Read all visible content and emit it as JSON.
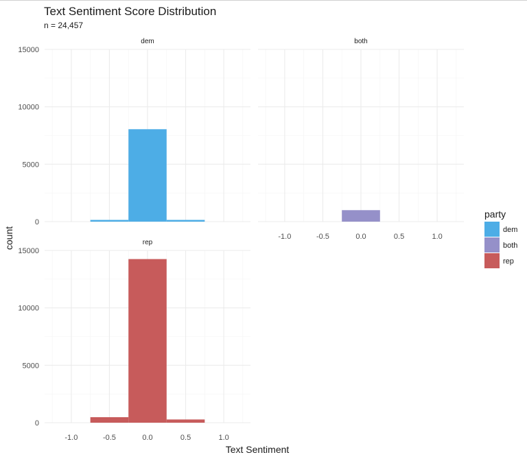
{
  "chart_data": {
    "type": "bar",
    "title": "Text Sentiment Score Distribution",
    "subtitle": "n = 24,457",
    "xlabel": "Text Sentiment",
    "ylabel": "count",
    "xlim": [
      -1.35,
      1.35
    ],
    "ylim": [
      0,
      15000
    ],
    "x_ticks": [
      -1.0,
      -0.5,
      0.0,
      0.5,
      1.0
    ],
    "x_tick_labels": [
      "-1.0",
      "-0.5",
      "0.0",
      "0.5",
      "1.0"
    ],
    "y_ticks": [
      0,
      5000,
      10000,
      15000
    ],
    "y_tick_labels": [
      "0",
      "5000",
      "10000",
      "15000"
    ],
    "bin_width": 0.5,
    "grid": true,
    "legend": {
      "title": "party",
      "position": "right",
      "entries": [
        {
          "label": "dem",
          "color": "#4DADE6"
        },
        {
          "label": "both",
          "color": "#9590C9"
        },
        {
          "label": "rep",
          "color": "#C75B5B"
        }
      ]
    },
    "facets": [
      {
        "name": "dem",
        "color": "#4DADE6",
        "bins": [
          {
            "center": -0.5,
            "count": 150
          },
          {
            "center": 0.0,
            "count": 8050
          },
          {
            "center": 0.5,
            "count": 150
          }
        ]
      },
      {
        "name": "both",
        "color": "#9590C9",
        "bins": [
          {
            "center": -0.5,
            "count": 0
          },
          {
            "center": 0.0,
            "count": 1000
          },
          {
            "center": 0.5,
            "count": 0
          }
        ]
      },
      {
        "name": "rep",
        "color": "#C75B5B",
        "bins": [
          {
            "center": -0.5,
            "count": 480
          },
          {
            "center": 0.0,
            "count": 14250
          },
          {
            "center": 0.5,
            "count": 280
          }
        ]
      }
    ]
  }
}
